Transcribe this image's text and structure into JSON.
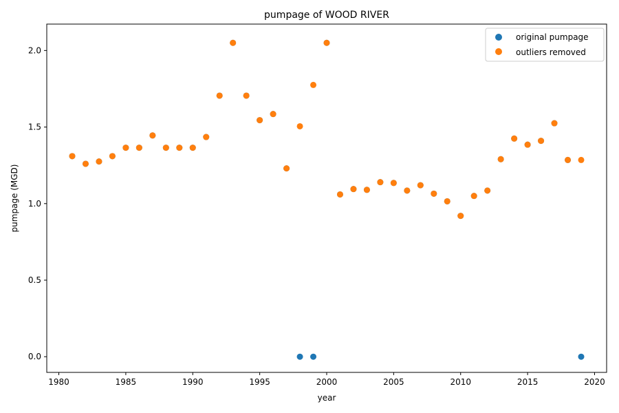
{
  "chart_data": {
    "type": "scatter",
    "title": "pumpage of WOOD RIVER",
    "xlabel": "year",
    "ylabel": "pumpage (MGD)",
    "xlim": [
      1979.1,
      2020.9
    ],
    "ylim": [
      -0.1025,
      2.1725
    ],
    "xticks": [
      1980,
      1985,
      1990,
      1995,
      2000,
      2005,
      2010,
      2015,
      2020
    ],
    "yticks": [
      0.0,
      0.5,
      1.0,
      1.5,
      2.0
    ],
    "xtick_labels": [
      "1980",
      "1985",
      "1990",
      "1995",
      "2000",
      "2005",
      "2010",
      "2015",
      "2020"
    ],
    "ytick_labels": [
      "0.0",
      "0.5",
      "1.0",
      "1.5",
      "2.0"
    ],
    "grid": false,
    "legend": "top-right",
    "series": [
      {
        "name": "original pumpage",
        "color": "#1f77b4",
        "x": [
          1981,
          1982,
          1983,
          1984,
          1985,
          1986,
          1987,
          1988,
          1989,
          1990,
          1991,
          1992,
          1993,
          1994,
          1995,
          1996,
          1997,
          1998,
          1999,
          2000,
          2001,
          2002,
          2003,
          2004,
          2005,
          2006,
          2007,
          2008,
          2009,
          2010,
          2011,
          2012,
          2013,
          2014,
          2015,
          2016,
          2017,
          2018,
          2019
        ],
        "y": [
          1.31,
          1.26,
          1.275,
          1.31,
          1.365,
          1.365,
          1.445,
          1.365,
          1.365,
          1.365,
          1.435,
          1.705,
          2.05,
          1.705,
          1.545,
          1.585,
          1.23,
          0.0,
          0.0,
          2.05,
          1.06,
          1.095,
          1.09,
          1.14,
          1.135,
          1.085,
          1.12,
          1.065,
          1.015,
          0.92,
          1.05,
          1.085,
          1.29,
          1.425,
          1.385,
          1.41,
          1.525,
          1.285,
          0.0
        ]
      },
      {
        "name": "outliers removed",
        "color": "#ff7f0e",
        "x": [
          1981,
          1982,
          1983,
          1984,
          1985,
          1986,
          1987,
          1988,
          1989,
          1990,
          1991,
          1992,
          1993,
          1994,
          1995,
          1996,
          1997,
          1998,
          1999,
          2000,
          2001,
          2002,
          2003,
          2004,
          2005,
          2006,
          2007,
          2008,
          2009,
          2010,
          2011,
          2012,
          2013,
          2014,
          2015,
          2016,
          2017,
          2018,
          2019
        ],
        "y": [
          1.31,
          1.26,
          1.275,
          1.31,
          1.365,
          1.365,
          1.445,
          1.365,
          1.365,
          1.365,
          1.435,
          1.705,
          2.05,
          1.705,
          1.545,
          1.585,
          1.23,
          1.505,
          1.775,
          2.05,
          1.06,
          1.095,
          1.09,
          1.14,
          1.135,
          1.085,
          1.12,
          1.065,
          1.015,
          0.92,
          1.05,
          1.085,
          1.29,
          1.425,
          1.385,
          1.41,
          1.525,
          1.285,
          1.285
        ]
      }
    ]
  }
}
